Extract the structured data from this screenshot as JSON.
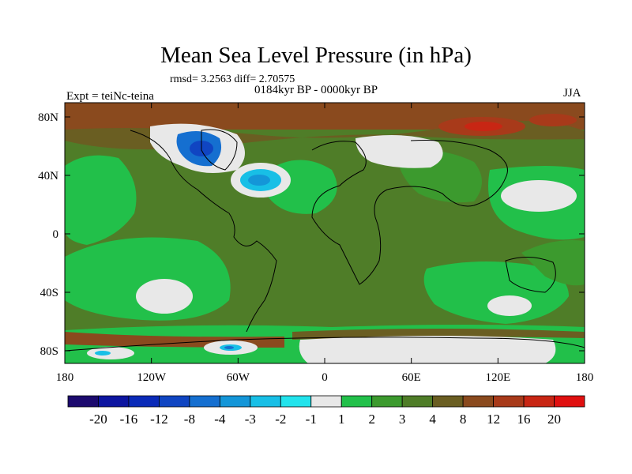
{
  "title": "Mean Sea Level Pressure (in hPa)",
  "stats": "rmsd= 3.2563 diff= 2.70575",
  "period": "0184kyr BP - 0000kyr BP",
  "experiment": "Expt = teiNc-teina",
  "season": "JJA",
  "lat_ticks": [
    "80N",
    "40N",
    "0",
    "40S",
    "80S"
  ],
  "lon_ticks": [
    "180",
    "120W",
    "60W",
    "0",
    "60E",
    "120E",
    "180"
  ],
  "colorbar": {
    "labels": [
      "-20",
      "-16",
      "-12",
      "-8",
      "-4",
      "-3",
      "-2",
      "-1",
      "1",
      "2",
      "3",
      "4",
      "8",
      "12",
      "16",
      "20"
    ],
    "colors": [
      "#1c0a6e",
      "#0d15a0",
      "#0a2ab8",
      "#1045c2",
      "#156fd0",
      "#1496d8",
      "#18bfe6",
      "#22e3ec",
      "#e8e8e8",
      "#22c04a",
      "#3c9a2e",
      "#4f7d28",
      "#6a5e22",
      "#8a4a1e",
      "#a83a1a",
      "#c82614",
      "#e01010"
    ]
  }
}
